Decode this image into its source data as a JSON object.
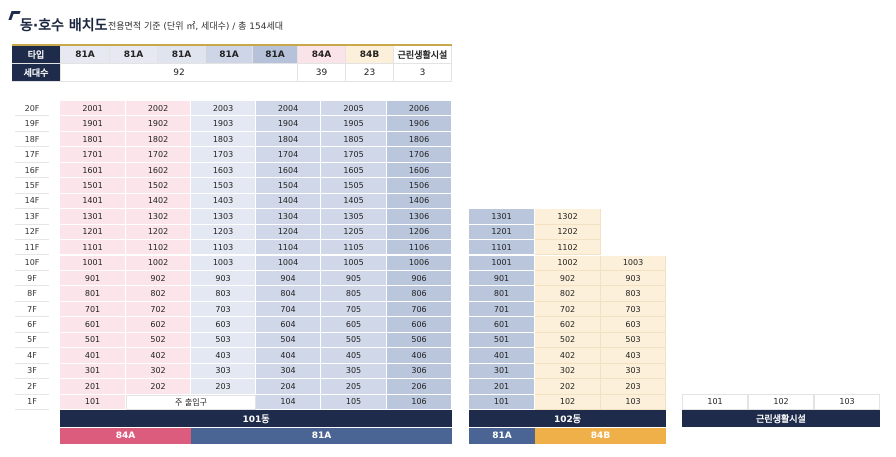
{
  "header": {
    "title": "동·호수 배치도",
    "subtitle": "전용면적 기준 (단위 ㎡, 세대수) / 총 154세대"
  },
  "type_table": {
    "row_label_type": "타입",
    "row_label_count": "세대수",
    "types": [
      "81A",
      "81A",
      "81A",
      "81A",
      "81A",
      "84A",
      "84B",
      "근린생활시설"
    ],
    "counts": [
      "92",
      "39",
      "23",
      "3"
    ]
  },
  "floors": [
    "20F",
    "19F",
    "18F",
    "17F",
    "16F",
    "15F",
    "14F",
    "13F",
    "12F",
    "11F",
    "10F",
    "9F",
    "8F",
    "7F",
    "6F",
    "5F",
    "4F",
    "3F",
    "2F",
    "1F"
  ],
  "building_101": {
    "name": "101동",
    "first_floor": [
      "101",
      "주 출입구",
      "104",
      "105",
      "106"
    ],
    "type_bars": [
      "84A",
      "81A"
    ]
  },
  "building_102": {
    "name": "102동",
    "type_bars": [
      "81A",
      "84B"
    ]
  },
  "commercial": {
    "name": "근린생활시설",
    "units": [
      "101",
      "102",
      "103"
    ]
  },
  "colors": {
    "navy": "#1f2b4a",
    "pink_bar": "#dc5c7e",
    "blue_bar": "#4a6593",
    "orange_bar": "#efb04a",
    "gold_line": "#c9a74b"
  }
}
